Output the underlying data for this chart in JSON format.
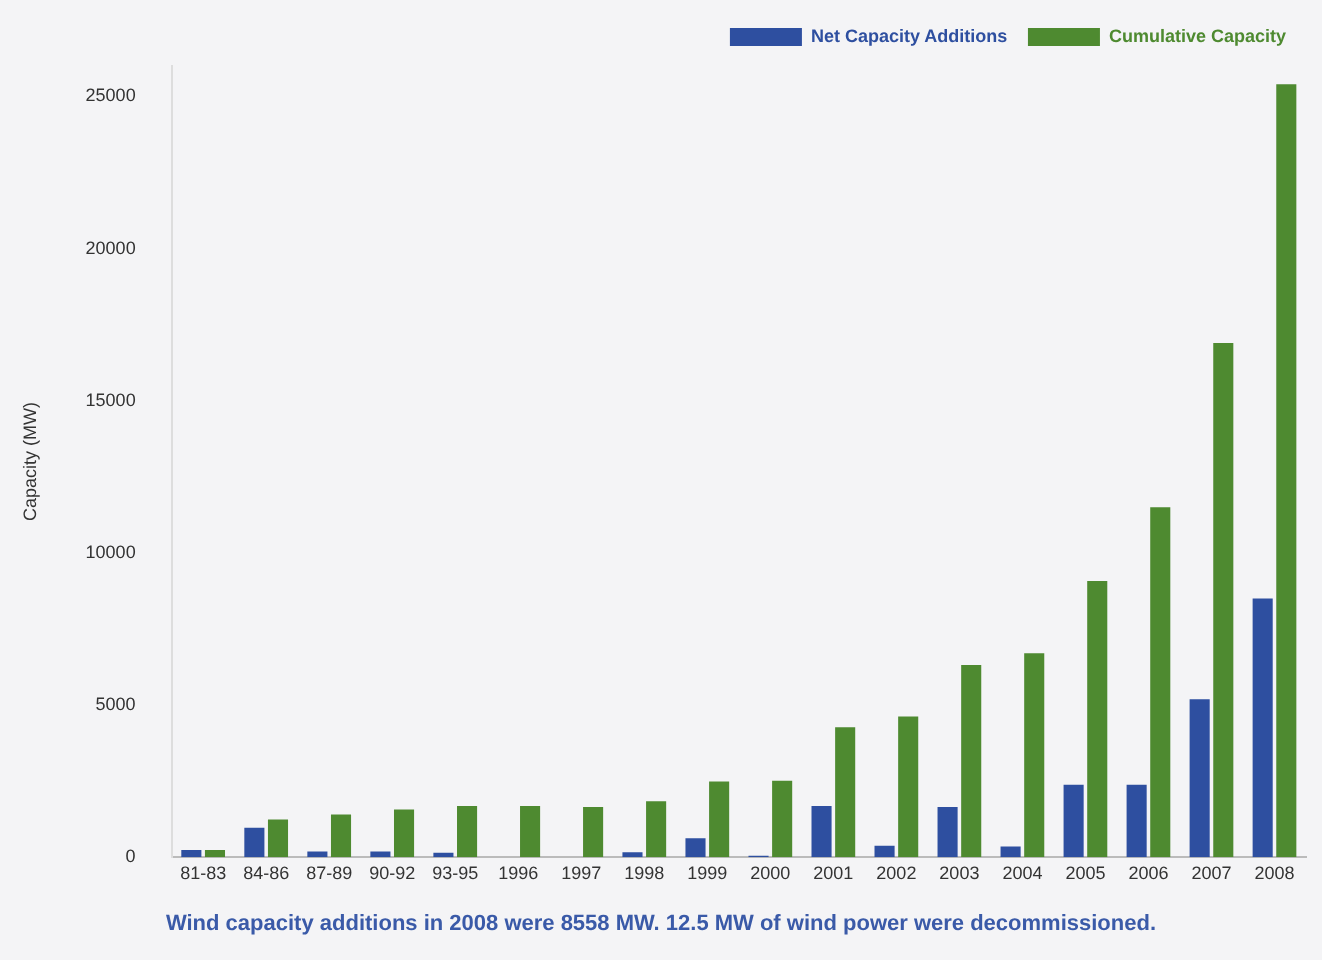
{
  "chart_data": {
    "type": "bar",
    "ylabel": "Capacity (MW)",
    "categories": [
      "81-83",
      "84-86",
      "87-89",
      "90-92",
      "93-95",
      "1996",
      "1997",
      "1998",
      "1999",
      "2000",
      "2001",
      "2002",
      "2003",
      "2004",
      "2005",
      "2006",
      "2007",
      "2008"
    ],
    "series": [
      {
        "name": "Net Capacity Additions",
        "color": "#2e4fa0",
        "values": [
          240,
          970,
          190,
          190,
          150,
          0,
          0,
          160,
          620,
          50,
          1680,
          380,
          1650,
          350,
          2380,
          2380,
          5190,
          8500
        ]
      },
      {
        "name": "Cumulative Capacity",
        "color": "#4e8a30",
        "values": [
          240,
          1240,
          1400,
          1570,
          1680,
          1680,
          1650,
          1840,
          2490,
          2510,
          4270,
          4620,
          6320,
          6700,
          9080,
          11500,
          16900,
          25400
        ]
      }
    ],
    "ylim": [
      0,
      26000
    ],
    "yticks": [
      0,
      5000,
      10000,
      15000,
      20000,
      25000
    ],
    "grid": false,
    "legend": "top right",
    "annotations": [
      "Wind capacity additions in 2008 were 8558 MW.  12.5 MW of wind power were decommissioned."
    ]
  }
}
